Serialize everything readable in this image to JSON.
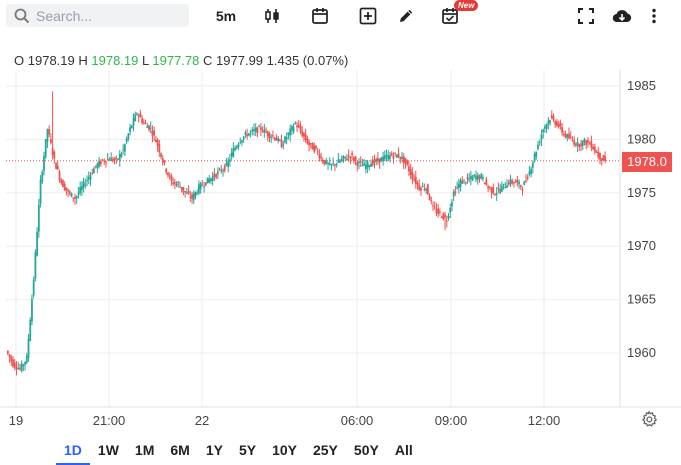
{
  "toolbar": {
    "search_placeholder": "Search...",
    "interval": "5m",
    "new_badge": "New"
  },
  "ohlc": {
    "o_label": "O",
    "o_value": "1978.19",
    "h_label": "H",
    "h_value": "1978.19",
    "l_label": "L",
    "l_value": "1977.78",
    "c_label": "C",
    "c_value": "1977.99",
    "change": "1.435 (0.07%)"
  },
  "price_axis": {
    "ticks": [
      "1985",
      "1980",
      "1975",
      "1970",
      "1965",
      "1960"
    ],
    "tick_values": [
      1985,
      1980,
      1975,
      1970,
      1965,
      1960
    ],
    "last_price_label": "1978.0",
    "last_price": 1978.0
  },
  "time_axis": {
    "labels": [
      "19",
      "21:00",
      "22",
      "06:00",
      "09:00",
      "12:00"
    ]
  },
  "ranges": [
    "1D",
    "1W",
    "1M",
    "6M",
    "1Y",
    "5Y",
    "10Y",
    "25Y",
    "50Y",
    "All"
  ],
  "active_range": "1D",
  "colors": {
    "up": "#26a69a",
    "down": "#ef5350",
    "accent": "#2962ff",
    "grid": "#eeeeee"
  },
  "chart_data": {
    "type": "candlestick",
    "ylim": [
      1956,
      1988
    ],
    "yticks": [
      1960,
      1965,
      1970,
      1975,
      1980,
      1985
    ],
    "xtick_labels": [
      "19",
      "21:00",
      "22",
      "06:00",
      "09:00",
      "12:00"
    ],
    "last_price": 1978.0,
    "close_path": [
      1960.2,
      1959.0,
      1958.5,
      1959.5,
      1967.0,
      1976.0,
      1981.0,
      1978.0,
      1976.0,
      1975.0,
      1974.5,
      1975.5,
      1976.5,
      1977.5,
      1978.0,
      1978.2,
      1978.0,
      1979.0,
      1981.0,
      1982.5,
      1981.5,
      1981.0,
      1979.5,
      1977.5,
      1976.0,
      1975.8,
      1975.0,
      1974.5,
      1975.5,
      1976.0,
      1976.5,
      1977.0,
      1977.5,
      1979.0,
      1980.0,
      1980.5,
      1980.8,
      1981.0,
      1980.5,
      1980.2,
      1979.5,
      1980.5,
      1981.5,
      1980.5,
      1979.5,
      1979.0,
      1978.0,
      1977.5,
      1977.8,
      1978.2,
      1978.5,
      1977.8,
      1977.5,
      1977.8,
      1978.0,
      1978.3,
      1978.5,
      1978.5,
      1977.8,
      1976.5,
      1975.5,
      1975.5,
      1973.5,
      1973.0,
      1972.5,
      1975.0,
      1976.0,
      1976.2,
      1976.5,
      1976.5,
      1975.5,
      1975.0,
      1975.5,
      1976.0,
      1976.0,
      1975.5,
      1977.0,
      1979.0,
      1981.0,
      1982.0,
      1981.5,
      1980.5,
      1980.0,
      1979.5,
      1979.8,
      1979.5,
      1978.5,
      1978.0
    ],
    "time_span_bars": 88
  }
}
